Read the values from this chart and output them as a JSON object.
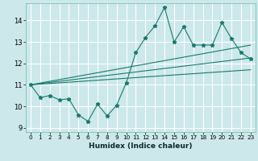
{
  "title": "",
  "xlabel": "Humidex (Indice chaleur)",
  "ylabel": "",
  "background_color": "#cce8ea",
  "grid_color": "#ffffff",
  "line_color": "#1a7a6e",
  "xlim": [
    -0.5,
    23.5
  ],
  "ylim": [
    8.8,
    14.8
  ],
  "yticks": [
    9,
    10,
    11,
    12,
    13,
    14
  ],
  "xticks": [
    0,
    1,
    2,
    3,
    4,
    5,
    6,
    7,
    8,
    9,
    10,
    11,
    12,
    13,
    14,
    15,
    16,
    17,
    18,
    19,
    20,
    21,
    22,
    23
  ],
  "series1_x": [
    0,
    1,
    2,
    3,
    4,
    5,
    6,
    7,
    8,
    9,
    10,
    11,
    12,
    13,
    14,
    15,
    16,
    17,
    18,
    19,
    20,
    21,
    22,
    23
  ],
  "series1_y": [
    11.0,
    10.4,
    10.5,
    10.3,
    10.35,
    9.6,
    9.3,
    10.1,
    9.55,
    10.05,
    11.1,
    12.5,
    13.2,
    13.75,
    14.6,
    13.0,
    13.7,
    12.85,
    12.85,
    12.85,
    13.9,
    13.15,
    12.5,
    12.2
  ],
  "trend1_x": [
    0,
    23
  ],
  "trend1_y": [
    11.0,
    12.85
  ],
  "trend2_x": [
    0,
    23
  ],
  "trend2_y": [
    11.0,
    12.25
  ],
  "trend3_x": [
    0,
    23
  ],
  "trend3_y": [
    11.0,
    11.7
  ]
}
